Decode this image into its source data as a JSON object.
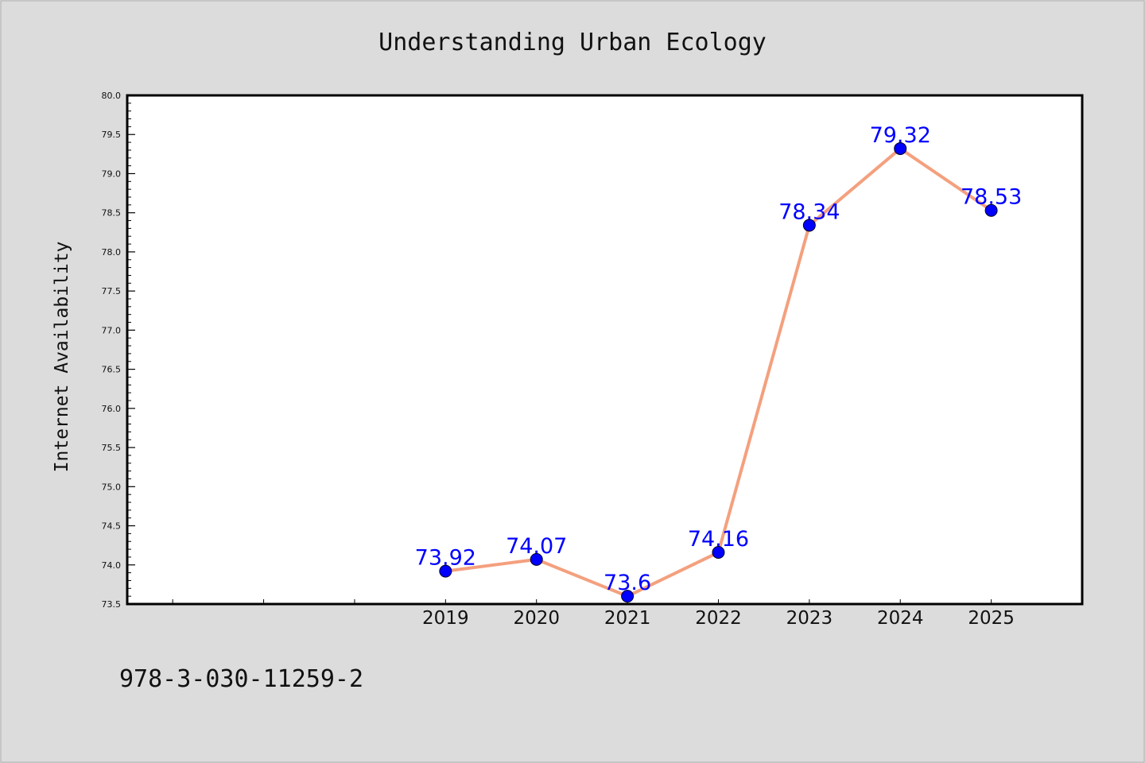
{
  "chart_data": {
    "type": "line",
    "title": "Understanding Urban Ecology",
    "ylabel": "Internet Availability",
    "xlabel": "",
    "x": [
      "2019",
      "2020",
      "2021",
      "2022",
      "2023",
      "2024",
      "2025"
    ],
    "series": [
      {
        "values": [
          73.92,
          74.07,
          73.6,
          74.16,
          78.34,
          79.32,
          78.53
        ]
      }
    ],
    "data_labels": [
      "73.92",
      "74.07",
      "73.6",
      "74.16",
      "78.34",
      "79.32",
      "78.53"
    ],
    "xlim": [
      2015.5,
      2026
    ],
    "ylim": [
      73.5,
      80.0
    ],
    "yticks": [
      "73.5",
      "74.0",
      "74.5",
      "75.0",
      "75.5",
      "76.0",
      "76.5",
      "77.0",
      "77.5",
      "78.0",
      "78.5",
      "79.0",
      "79.5",
      "80.0"
    ],
    "grid": false,
    "legend": "none",
    "line_color": "#f4a07e",
    "marker_color": "#0000ff",
    "label_color": "#0000ff"
  },
  "footer": {
    "isbn": "978-3-030-11259-2"
  }
}
